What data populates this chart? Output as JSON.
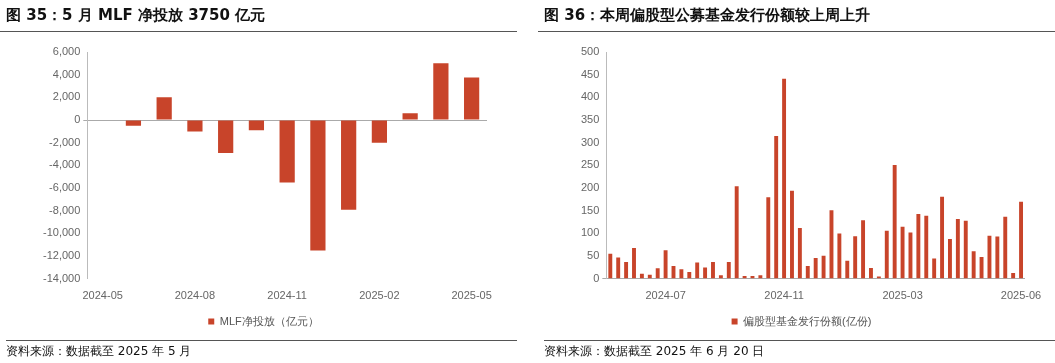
{
  "chart_data": [
    {
      "type": "bar",
      "title": "图 35：5 月 MLF 净投放 3750 亿元",
      "categories": [
        "2024-05",
        null,
        null,
        "2024-08",
        null,
        null,
        "2024-11",
        null,
        null,
        "2025-02",
        null,
        null,
        "2025-05"
      ],
      "series": [
        {
          "name": "MLF净投放（亿元）",
          "color": "#c8442a",
          "values": [
            null,
            -500,
            2000,
            -1000,
            -2900,
            -900,
            -5500,
            -11500,
            -7900,
            -2000,
            600,
            5000,
            3750
          ]
        }
      ],
      "ylim": [
        -14000,
        6000
      ],
      "yticks": [
        {
          "value": -14000,
          "label": "-14,000"
        },
        {
          "value": -12000,
          "label": "-12,000"
        },
        {
          "value": -10000,
          "label": "-10,000"
        },
        {
          "value": -8000,
          "label": "-8,000"
        },
        {
          "value": -6000,
          "label": "-6,000"
        },
        {
          "value": -4000,
          "label": "-4,000"
        },
        {
          "value": -2000,
          "label": "-2,000"
        },
        0,
        {
          "value": 2000,
          "label": "2,000"
        },
        {
          "value": 4000,
          "label": "4,000"
        },
        {
          "value": 6000,
          "label": "6,000"
        }
      ],
      "legend": "bottom",
      "annotations": [
        "资料来源：数据截至 2025 年 5 月"
      ]
    },
    {
      "type": "bar",
      "title": "图 36：本周偏股型公募基金发行份额较上周上升",
      "categories": [
        null,
        null,
        null,
        null,
        null,
        null,
        null,
        "2024-07",
        null,
        null,
        null,
        null,
        null,
        null,
        null,
        null,
        null,
        null,
        null,
        null,
        null,
        null,
        "2024-11",
        null,
        null,
        null,
        null,
        null,
        null,
        null,
        null,
        null,
        null,
        null,
        null,
        null,
        null,
        "2025-03",
        null,
        null,
        null,
        null,
        null,
        null,
        null,
        null,
        null,
        null,
        null,
        null,
        null,
        null,
        "2025-06"
      ],
      "series": [
        {
          "name": "偏股型基金发行份额(亿份)",
          "color": "#c8442a",
          "values": [
            55,
            47,
            37,
            68,
            11,
            9,
            23,
            63,
            28,
            21,
            15,
            36,
            25,
            37,
            8,
            37,
            204,
            6,
            6,
            8,
            180,
            315,
            441,
            194,
            112,
            28,
            46,
            51,
            151,
            100,
            40,
            94,
            129,
            24,
            5,
            106,
            251,
            115,
            102,
            143,
            139,
            45,
            181,
            88,
            132,
            128,
            61,
            48,
            95,
            93,
            137,
            13,
            170
          ]
        }
      ],
      "ylim": [
        0,
        500
      ],
      "yticks": [
        0,
        50,
        100,
        150,
        200,
        250,
        300,
        350,
        400,
        450,
        500
      ],
      "legend": "bottom",
      "annotations": [
        "资料来源：数据截至 2025 年 6 月 20 日"
      ]
    }
  ]
}
